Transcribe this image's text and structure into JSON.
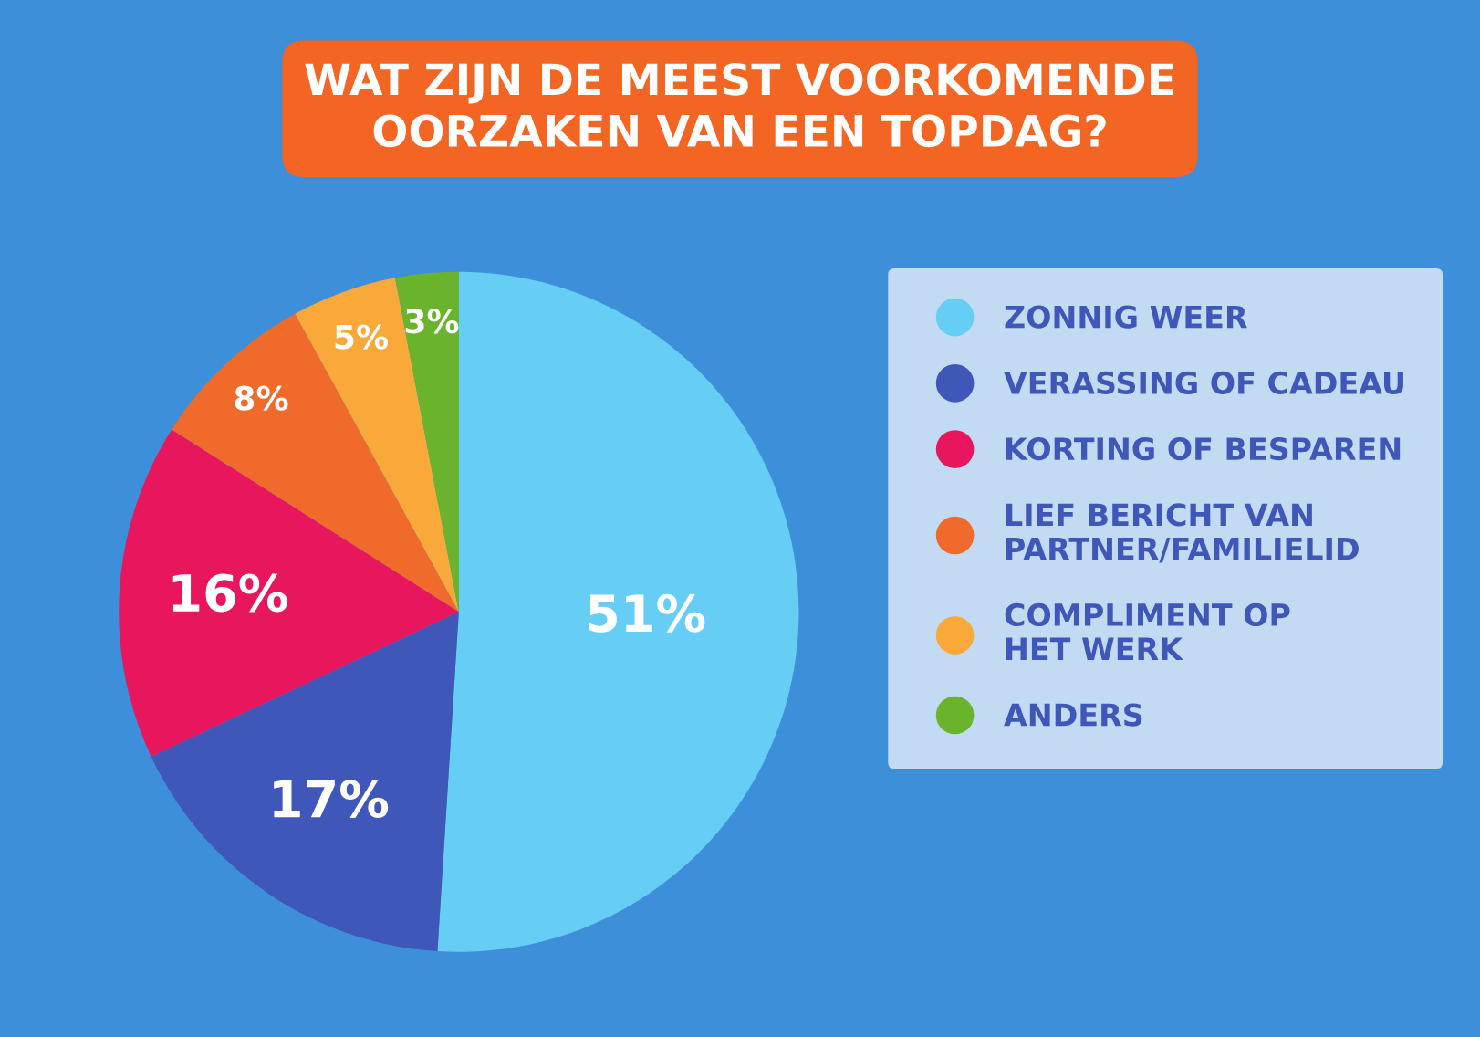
{
  "chart_data": {
    "type": "pie",
    "title": "WAT ZIJN DE MEEST VOORKOMENDE\nOORZAKEN VAN EEN TOPDAG?",
    "categories": [
      "ZONNIG WEER",
      "VERASSING OF CADEAU",
      "KORTING OF BESPAREN",
      "LIEF BERICHT VAN\nPARTNER/FAMILIELID",
      "COMPLIMENT OP\nHET WERK",
      "ANDERS"
    ],
    "values": [
      51,
      17,
      16,
      8,
      5,
      3
    ],
    "colors": [
      "#66cdf5",
      "#3f57b8",
      "#e8175d",
      "#f06a2c",
      "#f9a83a",
      "#6ab42d"
    ],
    "value_labels": [
      "51%",
      "17%",
      "16%",
      "8%",
      "5%",
      "3%"
    ],
    "legend": "right"
  }
}
